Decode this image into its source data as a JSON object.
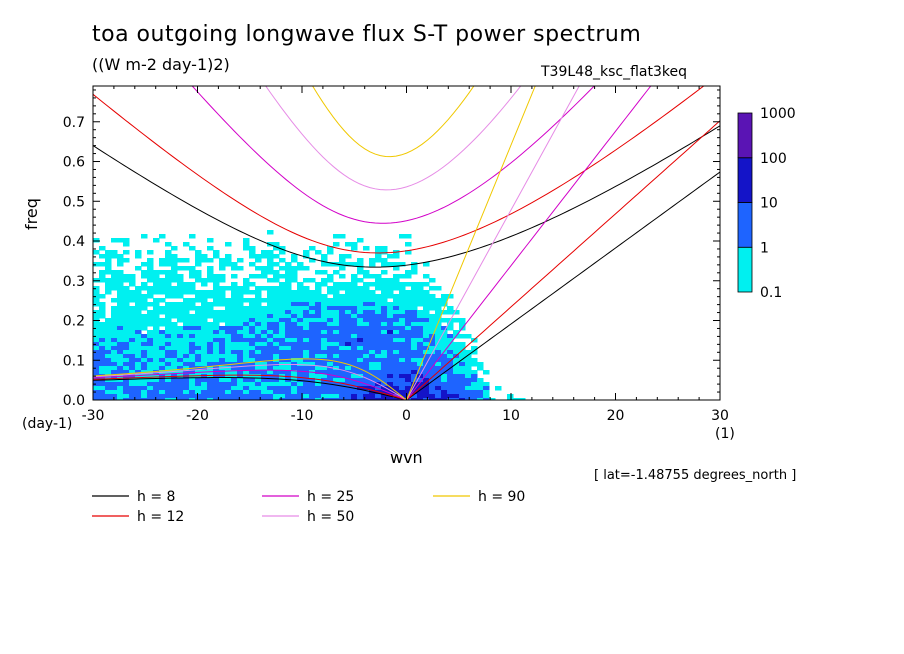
{
  "chart_data": {
    "type": "heatmap",
    "title": "toa outgoing longwave flux S-T power spectrum",
    "subtitle": "((W m-2 day-1)2)",
    "run_label": "T39L48_ksc_flat3keq",
    "xlabel": "wvn",
    "ylabel": "freq",
    "x_unit": "(1)",
    "y_unit": "(day-1)",
    "annotation": "[ lat=-1.48755 degrees_north ]",
    "xlim": [
      -30,
      30
    ],
    "ylim": [
      0,
      0.79
    ],
    "x_ticks": [
      "-30",
      "-20",
      "-10",
      "0",
      "10",
      "20",
      "30"
    ],
    "y_ticks": [
      "0.0",
      "0.1",
      "0.2",
      "0.3",
      "0.4",
      "0.5",
      "0.6",
      "0.7"
    ],
    "colorbar": {
      "levels": [
        "0.1",
        "1",
        "10",
        "100",
        "1000"
      ],
      "colors": [
        "#00f0f0",
        "#1e64ff",
        "#1414c8",
        "#5a14b4"
      ]
    },
    "series": [
      {
        "name": "h =  8",
        "color": "#000000",
        "h": 8
      },
      {
        "name": "h = 12",
        "color": "#e60000",
        "h": 12
      },
      {
        "name": "h = 25",
        "color": "#d200c8",
        "h": 25
      },
      {
        "name": "h = 50",
        "color": "#e68ce6",
        "h": 50
      },
      {
        "name": "h = 90",
        "color": "#f0c800",
        "h": 90
      }
    ]
  }
}
